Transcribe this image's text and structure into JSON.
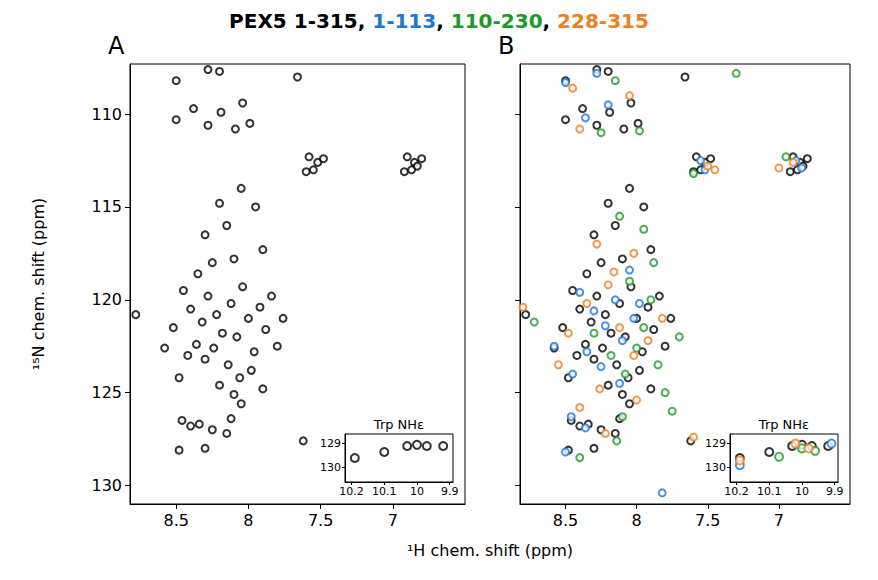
{
  "title_parts": [
    {
      "text": "PEX5 1-315, ",
      "color": "#000000"
    },
    {
      "text": "1-113",
      "color": "#1b78d8"
    },
    {
      "text": ", ",
      "color": "#000000"
    },
    {
      "text": "110-230",
      "color": "#1c9a2a"
    },
    {
      "text": ", ",
      "color": "#000000"
    },
    {
      "text": "228-315",
      "color": "#f07f1f"
    }
  ],
  "xlabel": "¹H chem. shift (ppm)",
  "chart_data": [
    {
      "panel": "A",
      "type": "scatter",
      "ylabel": "¹⁵N chem. shift (ppm)",
      "xlim": [
        8.82,
        6.5
      ],
      "xticks": [
        8.5,
        8,
        7.5,
        7
      ],
      "ylim": [
        131,
        107.3
      ],
      "yticks": [
        110,
        115,
        120,
        125,
        130
      ],
      "grid": false,
      "series": [
        {
          "name": "1-315",
          "color": "#000000",
          "points": [
            [
              8.5,
              108.2
            ],
            [
              8.28,
              107.6
            ],
            [
              8.2,
              107.7
            ],
            [
              7.66,
              108.0
            ],
            [
              8.5,
              110.3
            ],
            [
              8.38,
              109.7
            ],
            [
              8.28,
              110.6
            ],
            [
              8.19,
              109.9
            ],
            [
              8.09,
              110.8
            ],
            [
              7.99,
              110.5
            ],
            [
              8.04,
              109.4
            ],
            [
              7.58,
              112.3
            ],
            [
              7.52,
              112.6
            ],
            [
              7.48,
              112.4
            ],
            [
              7.6,
              113.1
            ],
            [
              7.55,
              113.0
            ],
            [
              6.9,
              112.3
            ],
            [
              6.85,
              112.6
            ],
            [
              6.8,
              112.4
            ],
            [
              6.92,
              113.1
            ],
            [
              6.87,
              113.0
            ],
            [
              6.83,
              112.8
            ],
            [
              8.2,
              114.8
            ],
            [
              8.05,
              114.0
            ],
            [
              7.95,
              115.0
            ],
            [
              8.15,
              116.0
            ],
            [
              8.3,
              116.5
            ],
            [
              7.9,
              117.3
            ],
            [
              8.1,
              117.8
            ],
            [
              8.25,
              118.0
            ],
            [
              8.35,
              118.6
            ],
            [
              8.45,
              119.5
            ],
            [
              8.4,
              120.5
            ],
            [
              8.32,
              121.2
            ],
            [
              8.28,
              119.8
            ],
            [
              8.22,
              120.8
            ],
            [
              8.18,
              121.8
            ],
            [
              8.12,
              120.2
            ],
            [
              8.08,
              122.0
            ],
            [
              8.04,
              119.3
            ],
            [
              8.0,
              121.0
            ],
            [
              7.96,
              122.8
            ],
            [
              7.92,
              120.4
            ],
            [
              7.88,
              121.6
            ],
            [
              7.84,
              119.8
            ],
            [
              8.36,
              122.4
            ],
            [
              8.3,
              123.2
            ],
            [
              8.24,
              122.6
            ],
            [
              8.14,
              123.5
            ],
            [
              8.06,
              124.2
            ],
            [
              7.98,
              123.8
            ],
            [
              8.42,
              123.0
            ],
            [
              8.2,
              124.6
            ],
            [
              8.1,
              125.1
            ],
            [
              7.9,
              124.8
            ],
            [
              8.52,
              121.5
            ],
            [
              8.58,
              122.6
            ],
            [
              8.48,
              124.2
            ],
            [
              7.8,
              122.5
            ],
            [
              7.76,
              121.0
            ],
            [
              8.78,
              120.8
            ],
            [
              8.46,
              126.5
            ],
            [
              8.4,
              126.8
            ],
            [
              8.34,
              126.7
            ],
            [
              8.25,
              127.0
            ],
            [
              8.15,
              127.2
            ],
            [
              8.12,
              126.4
            ],
            [
              8.05,
              125.6
            ],
            [
              8.48,
              128.1
            ],
            [
              8.3,
              128.0
            ],
            [
              7.62,
              127.6
            ]
          ]
        }
      ],
      "inset": {
        "title": "Trp NHε",
        "xlim": [
          10.22,
          9.89
        ],
        "xticks": [
          10.2,
          10.1,
          10,
          9.9
        ],
        "ylim": [
          130.6,
          128.6
        ],
        "yticks": [
          129,
          130
        ],
        "series": [
          {
            "name": "1-315",
            "color": "#000000",
            "points": [
              [
                10.19,
                129.6
              ],
              [
                10.1,
                129.35
              ],
              [
                10.03,
                129.1
              ],
              [
                10.0,
                129.05
              ],
              [
                9.97,
                129.1
              ],
              [
                9.92,
                129.1
              ]
            ]
          }
        ]
      }
    },
    {
      "panel": "B",
      "type": "scatter",
      "xlim": [
        8.82,
        6.5
      ],
      "xticks": [
        8.5,
        8,
        7.5,
        7
      ],
      "ylim": [
        131,
        107.3
      ],
      "yticks": [
        110,
        115,
        120,
        125,
        130
      ],
      "grid": false,
      "tick_labels": "x",
      "series": [
        {
          "name": "1-315",
          "color": "#000000",
          "points": [
            [
              8.5,
              108.2
            ],
            [
              8.28,
              107.6
            ],
            [
              8.2,
              107.7
            ],
            [
              7.66,
              108.0
            ],
            [
              8.5,
              110.3
            ],
            [
              8.38,
              109.7
            ],
            [
              8.28,
              110.6
            ],
            [
              8.19,
              109.9
            ],
            [
              8.09,
              110.8
            ],
            [
              7.99,
              110.5
            ],
            [
              8.04,
              109.4
            ],
            [
              7.58,
              112.3
            ],
            [
              7.52,
              112.6
            ],
            [
              7.48,
              112.4
            ],
            [
              7.6,
              113.1
            ],
            [
              7.55,
              113.0
            ],
            [
              6.9,
              112.3
            ],
            [
              6.85,
              112.6
            ],
            [
              6.8,
              112.4
            ],
            [
              6.92,
              113.1
            ],
            [
              6.87,
              113.0
            ],
            [
              6.83,
              112.8
            ],
            [
              8.2,
              114.8
            ],
            [
              8.05,
              114.0
            ],
            [
              7.95,
              115.0
            ],
            [
              8.15,
              116.0
            ],
            [
              8.3,
              116.5
            ],
            [
              7.9,
              117.3
            ],
            [
              8.1,
              117.8
            ],
            [
              8.25,
              118.0
            ],
            [
              8.35,
              118.6
            ],
            [
              8.45,
              119.5
            ],
            [
              8.4,
              120.5
            ],
            [
              8.32,
              121.2
            ],
            [
              8.28,
              119.8
            ],
            [
              8.22,
              120.8
            ],
            [
              8.18,
              121.8
            ],
            [
              8.12,
              120.2
            ],
            [
              8.08,
              122.0
            ],
            [
              8.04,
              119.3
            ],
            [
              8.0,
              121.0
            ],
            [
              7.96,
              122.8
            ],
            [
              7.92,
              120.4
            ],
            [
              7.88,
              121.6
            ],
            [
              7.84,
              119.8
            ],
            [
              8.36,
              122.4
            ],
            [
              8.3,
              123.2
            ],
            [
              8.24,
              122.6
            ],
            [
              8.14,
              123.5
            ],
            [
              8.06,
              124.2
            ],
            [
              7.98,
              123.8
            ],
            [
              8.42,
              123.0
            ],
            [
              8.2,
              124.6
            ],
            [
              8.1,
              125.1
            ],
            [
              7.9,
              124.8
            ],
            [
              8.52,
              121.5
            ],
            [
              8.58,
              122.6
            ],
            [
              8.48,
              124.2
            ],
            [
              7.8,
              122.5
            ],
            [
              7.76,
              121.0
            ],
            [
              8.78,
              120.8
            ],
            [
              8.46,
              126.5
            ],
            [
              8.4,
              126.8
            ],
            [
              8.34,
              126.7
            ],
            [
              8.25,
              127.0
            ],
            [
              8.15,
              127.2
            ],
            [
              8.12,
              126.4
            ],
            [
              8.05,
              125.6
            ],
            [
              8.48,
              128.1
            ],
            [
              8.3,
              128.0
            ],
            [
              7.62,
              127.6
            ]
          ]
        },
        {
          "name": "1-113",
          "color": "#1b78d8",
          "points": [
            [
              8.5,
              108.3
            ],
            [
              8.28,
              107.8
            ],
            [
              8.36,
              110.2
            ],
            [
              8.2,
              109.5
            ],
            [
              7.55,
              112.5
            ],
            [
              7.52,
              113.0
            ],
            [
              6.88,
              112.5
            ],
            [
              6.84,
              112.9
            ],
            [
              8.4,
              119.6
            ],
            [
              8.3,
              120.6
            ],
            [
              8.22,
              121.4
            ],
            [
              8.15,
              120.0
            ],
            [
              8.1,
              122.2
            ],
            [
              8.02,
              121.0
            ],
            [
              8.35,
              122.8
            ],
            [
              8.25,
              123.6
            ],
            [
              8.46,
              126.3
            ],
            [
              8.36,
              126.9
            ],
            [
              8.5,
              128.2
            ],
            [
              8.58,
              122.5
            ],
            [
              8.12,
              124.5
            ],
            [
              7.98,
              120.2
            ],
            [
              8.45,
              124.0
            ],
            [
              8.05,
              118.4
            ],
            [
              7.82,
              130.4
            ]
          ]
        },
        {
          "name": "110-230",
          "color": "#1c9a2a",
          "points": [
            [
              8.15,
              108.2
            ],
            [
              7.3,
              107.8
            ],
            [
              7.98,
              110.9
            ],
            [
              8.25,
              111.0
            ],
            [
              7.6,
              113.2
            ],
            [
              6.95,
              112.3
            ],
            [
              8.12,
              115.5
            ],
            [
              7.95,
              116.2
            ],
            [
              8.05,
              119.0
            ],
            [
              7.95,
              121.5
            ],
            [
              7.9,
              120.0
            ],
            [
              8.0,
              122.6
            ],
            [
              8.18,
              123.0
            ],
            [
              7.85,
              123.5
            ],
            [
              8.3,
              121.8
            ],
            [
              7.8,
              125.0
            ],
            [
              8.1,
              126.3
            ],
            [
              8.14,
              127.6
            ],
            [
              8.4,
              128.5
            ],
            [
              8.72,
              121.2
            ],
            [
              7.88,
              118.0
            ],
            [
              8.08,
              124.0
            ],
            [
              7.7,
              122.0
            ],
            [
              7.75,
              126.0
            ]
          ]
        },
        {
          "name": "228-315",
          "color": "#f07f1f",
          "points": [
            [
              8.45,
              108.6
            ],
            [
              8.4,
              110.8
            ],
            [
              8.05,
              109.0
            ],
            [
              7.5,
              112.8
            ],
            [
              7.45,
              113.0
            ],
            [
              6.9,
              112.6
            ],
            [
              7.0,
              112.9
            ],
            [
              8.28,
              117.0
            ],
            [
              8.02,
              117.5
            ],
            [
              8.35,
              120.2
            ],
            [
              8.2,
              119.2
            ],
            [
              8.12,
              121.5
            ],
            [
              8.02,
              123.0
            ],
            [
              7.92,
              122.2
            ],
            [
              8.26,
              124.8
            ],
            [
              8.48,
              121.8
            ],
            [
              8.8,
              120.4
            ],
            [
              8.55,
              123.5
            ],
            [
              8.0,
              125.4
            ],
            [
              7.6,
              127.4
            ],
            [
              8.22,
              127.2
            ],
            [
              8.4,
              125.8
            ],
            [
              7.82,
              121.0
            ],
            [
              8.16,
              118.5
            ]
          ]
        }
      ],
      "inset": {
        "title": "Trp NHε",
        "xlim": [
          10.22,
          9.89
        ],
        "xticks": [
          10.2,
          10.1,
          10,
          9.9
        ],
        "ylim": [
          130.6,
          128.6
        ],
        "yticks": [
          129,
          130
        ],
        "series": [
          {
            "name": "1-315",
            "color": "#000000",
            "points": [
              [
                10.19,
                129.6
              ],
              [
                10.1,
                129.35
              ],
              [
                10.03,
                129.1
              ],
              [
                10.0,
                129.05
              ],
              [
                9.97,
                129.1
              ],
              [
                9.92,
                129.1
              ]
            ]
          },
          {
            "name": "1-113",
            "color": "#1b78d8",
            "points": [
              [
                10.19,
                129.9
              ],
              [
                9.91,
                129.0
              ]
            ]
          },
          {
            "name": "110-230",
            "color": "#1c9a2a",
            "points": [
              [
                10.07,
                129.55
              ],
              [
                10.0,
                129.2
              ],
              [
                9.96,
                129.3
              ]
            ]
          },
          {
            "name": "228-315",
            "color": "#f07f1f",
            "points": [
              [
                10.19,
                129.7
              ],
              [
                10.02,
                129.0
              ],
              [
                9.98,
                129.2
              ]
            ]
          }
        ]
      }
    }
  ]
}
